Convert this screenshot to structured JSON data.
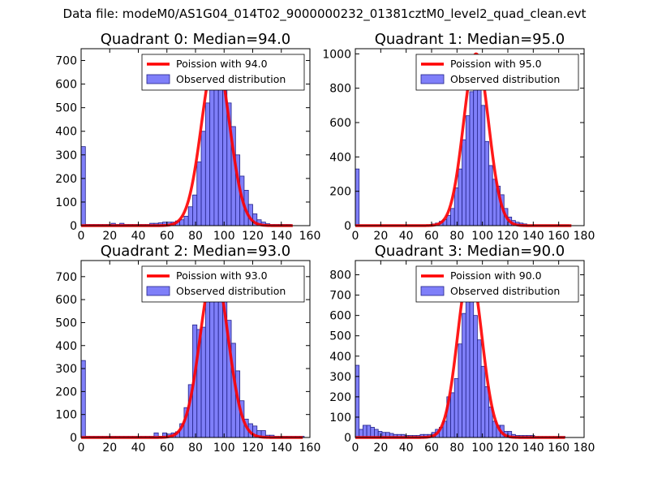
{
  "page_title": "Data file: modeM0/AS1G04_014T02_9000000232_01381cztM0_level2_quad_clean.evt",
  "colors": {
    "bar_fill": "#7f7ff9",
    "bar_edge": "#222288",
    "fit_line": "#ff0000",
    "axes": "#000000"
  },
  "chart_data": [
    {
      "type": "bar",
      "title": "Quadrant 0: Median=94.0",
      "xlim": [
        0,
        160
      ],
      "ylim": [
        0,
        750
      ],
      "xticks": [
        0,
        20,
        40,
        60,
        80,
        100,
        120,
        140,
        160
      ],
      "yticks": [
        0,
        100,
        200,
        300,
        400,
        500,
        600,
        700
      ],
      "bin_width": 3,
      "mean": 94.0,
      "peak": 720,
      "fit_xmax": 148,
      "legend": {
        "line": "Poission with 94.0",
        "bars": "Observed distribution",
        "position": "top-right"
      },
      "bars": [
        [
          0,
          335
        ],
        [
          3,
          5
        ],
        [
          6,
          5
        ],
        [
          9,
          5
        ],
        [
          12,
          5
        ],
        [
          15,
          5
        ],
        [
          18,
          5
        ],
        [
          21,
          10
        ],
        [
          24,
          5
        ],
        [
          27,
          10
        ],
        [
          30,
          5
        ],
        [
          33,
          5
        ],
        [
          36,
          5
        ],
        [
          39,
          5
        ],
        [
          42,
          5
        ],
        [
          45,
          5
        ],
        [
          48,
          10
        ],
        [
          51,
          10
        ],
        [
          54,
          12
        ],
        [
          57,
          15
        ],
        [
          60,
          15
        ],
        [
          63,
          15
        ],
        [
          66,
          20
        ],
        [
          69,
          25
        ],
        [
          72,
          40
        ],
        [
          75,
          80
        ],
        [
          78,
          130
        ],
        [
          81,
          270
        ],
        [
          84,
          400
        ],
        [
          87,
          520
        ],
        [
          90,
          600
        ],
        [
          93,
          650
        ],
        [
          96,
          650
        ],
        [
          99,
          580
        ],
        [
          102,
          520
        ],
        [
          105,
          420
        ],
        [
          108,
          300
        ],
        [
          111,
          210
        ],
        [
          114,
          150
        ],
        [
          117,
          90
        ],
        [
          120,
          50
        ],
        [
          123,
          25
        ],
        [
          126,
          15
        ],
        [
          129,
          8
        ],
        [
          132,
          5
        ],
        [
          135,
          5
        ],
        [
          138,
          5
        ],
        [
          141,
          5
        ],
        [
          144,
          5
        ]
      ]
    },
    {
      "type": "bar",
      "title": "Quadrant 1: Median=95.0",
      "xlim": [
        0,
        180
      ],
      "ylim": [
        0,
        1030
      ],
      "xticks": [
        0,
        20,
        40,
        60,
        80,
        100,
        120,
        140,
        160,
        180
      ],
      "yticks": [
        0,
        200,
        400,
        600,
        800,
        1000
      ],
      "bin_width": 3,
      "mean": 95.0,
      "peak": 1000,
      "fit_xmax": 170,
      "legend": {
        "line": "Poission with 95.0",
        "bars": "Observed distribution",
        "position": "top-right"
      },
      "bars": [
        [
          0,
          330
        ],
        [
          3,
          5
        ],
        [
          6,
          5
        ],
        [
          9,
          5
        ],
        [
          12,
          5
        ],
        [
          15,
          5
        ],
        [
          18,
          5
        ],
        [
          21,
          5
        ],
        [
          24,
          5
        ],
        [
          27,
          5
        ],
        [
          30,
          5
        ],
        [
          33,
          5
        ],
        [
          36,
          5
        ],
        [
          39,
          5
        ],
        [
          42,
          5
        ],
        [
          45,
          5
        ],
        [
          48,
          5
        ],
        [
          51,
          5
        ],
        [
          54,
          5
        ],
        [
          57,
          5
        ],
        [
          60,
          10
        ],
        [
          63,
          15
        ],
        [
          66,
          25
        ],
        [
          69,
          35
        ],
        [
          72,
          60
        ],
        [
          75,
          100
        ],
        [
          78,
          220
        ],
        [
          81,
          330
        ],
        [
          84,
          500
        ],
        [
          87,
          640
        ],
        [
          90,
          780
        ],
        [
          93,
          880
        ],
        [
          96,
          870
        ],
        [
          99,
          700
        ],
        [
          102,
          490
        ],
        [
          105,
          350
        ],
        [
          108,
          270
        ],
        [
          111,
          230
        ],
        [
          114,
          180
        ],
        [
          117,
          100
        ],
        [
          120,
          50
        ],
        [
          123,
          30
        ],
        [
          126,
          20
        ],
        [
          129,
          15
        ],
        [
          132,
          10
        ],
        [
          135,
          5
        ],
        [
          138,
          5
        ],
        [
          141,
          5
        ],
        [
          144,
          5
        ],
        [
          147,
          5
        ],
        [
          150,
          5
        ],
        [
          153,
          5
        ],
        [
          156,
          5
        ],
        [
          159,
          5
        ],
        [
          162,
          5
        ],
        [
          165,
          5
        ]
      ]
    },
    {
      "type": "bar",
      "title": "Quadrant 2: Median=93.0",
      "xlim": [
        0,
        160
      ],
      "ylim": [
        0,
        770
      ],
      "xticks": [
        0,
        20,
        40,
        60,
        80,
        100,
        120,
        140,
        160
      ],
      "yticks": [
        0,
        100,
        200,
        300,
        400,
        500,
        600,
        700
      ],
      "bin_width": 3,
      "mean": 93.0,
      "peak": 735,
      "fit_xmax": 155,
      "legend": {
        "line": "Poission with 93.0",
        "bars": "Observed distribution",
        "position": "top-right"
      },
      "bars": [
        [
          0,
          335
        ],
        [
          3,
          5
        ],
        [
          6,
          5
        ],
        [
          9,
          5
        ],
        [
          12,
          5
        ],
        [
          15,
          5
        ],
        [
          18,
          5
        ],
        [
          21,
          5
        ],
        [
          24,
          5
        ],
        [
          27,
          5
        ],
        [
          30,
          5
        ],
        [
          33,
          5
        ],
        [
          36,
          5
        ],
        [
          39,
          5
        ],
        [
          42,
          5
        ],
        [
          45,
          5
        ],
        [
          48,
          5
        ],
        [
          51,
          20
        ],
        [
          54,
          5
        ],
        [
          57,
          20
        ],
        [
          60,
          15
        ],
        [
          63,
          20
        ],
        [
          66,
          25
        ],
        [
          69,
          60
        ],
        [
          72,
          130
        ],
        [
          75,
          230
        ],
        [
          78,
          490
        ],
        [
          81,
          470
        ],
        [
          84,
          480
        ],
        [
          87,
          600
        ],
        [
          90,
          640
        ],
        [
          93,
          660
        ],
        [
          96,
          620
        ],
        [
          99,
          600
        ],
        [
          102,
          510
        ],
        [
          105,
          410
        ],
        [
          108,
          290
        ],
        [
          111,
          160
        ],
        [
          114,
          80
        ],
        [
          117,
          60
        ],
        [
          120,
          50
        ],
        [
          123,
          30
        ],
        [
          126,
          30
        ],
        [
          129,
          10
        ],
        [
          132,
          10
        ],
        [
          135,
          5
        ],
        [
          138,
          5
        ],
        [
          141,
          5
        ],
        [
          144,
          5
        ],
        [
          147,
          5
        ],
        [
          150,
          5
        ],
        [
          153,
          5
        ]
      ]
    },
    {
      "type": "bar",
      "title": "Quadrant 3: Median=90.0",
      "xlim": [
        0,
        180
      ],
      "ylim": [
        0,
        870
      ],
      "xticks": [
        0,
        20,
        40,
        60,
        80,
        100,
        120,
        140,
        160,
        180
      ],
      "yticks": [
        0,
        100,
        200,
        300,
        400,
        500,
        600,
        700,
        800
      ],
      "bin_width": 3,
      "mean": 90.0,
      "peak": 830,
      "fit_xmax": 165,
      "legend": {
        "line": "Poission with 90.0",
        "bars": "Observed distribution",
        "position": "top-right"
      },
      "bars": [
        [
          0,
          355
        ],
        [
          3,
          40
        ],
        [
          6,
          60
        ],
        [
          9,
          60
        ],
        [
          12,
          50
        ],
        [
          15,
          40
        ],
        [
          18,
          30
        ],
        [
          21,
          25
        ],
        [
          24,
          25
        ],
        [
          27,
          20
        ],
        [
          30,
          15
        ],
        [
          33,
          15
        ],
        [
          36,
          15
        ],
        [
          39,
          10
        ],
        [
          42,
          10
        ],
        [
          45,
          10
        ],
        [
          48,
          10
        ],
        [
          51,
          15
        ],
        [
          54,
          15
        ],
        [
          57,
          15
        ],
        [
          60,
          25
        ],
        [
          63,
          40
        ],
        [
          66,
          50
        ],
        [
          69,
          80
        ],
        [
          72,
          200
        ],
        [
          75,
          220
        ],
        [
          78,
          290
        ],
        [
          81,
          460
        ],
        [
          84,
          610
        ],
        [
          87,
          800
        ],
        [
          90,
          830
        ],
        [
          93,
          600
        ],
        [
          96,
          480
        ],
        [
          99,
          350
        ],
        [
          102,
          250
        ],
        [
          105,
          150
        ],
        [
          108,
          80
        ],
        [
          111,
          60
        ],
        [
          114,
          60
        ],
        [
          117,
          30
        ],
        [
          120,
          30
        ],
        [
          123,
          15
        ],
        [
          126,
          10
        ],
        [
          129,
          10
        ],
        [
          132,
          10
        ],
        [
          135,
          10
        ],
        [
          138,
          10
        ],
        [
          141,
          5
        ],
        [
          144,
          5
        ],
        [
          147,
          5
        ],
        [
          150,
          5
        ],
        [
          153,
          5
        ],
        [
          156,
          5
        ],
        [
          159,
          5
        ],
        [
          162,
          5
        ]
      ]
    }
  ]
}
